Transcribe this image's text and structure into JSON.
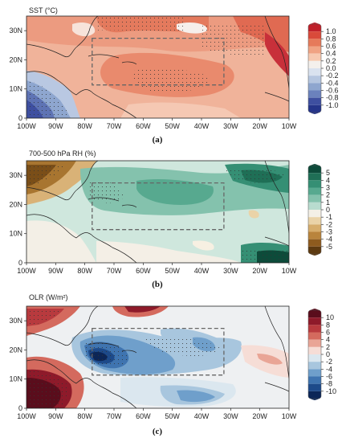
{
  "chart_data": [
    {
      "type": "heatmap",
      "title": "SST (°C)",
      "label": "(a)",
      "x_ticks": [
        "100W",
        "90W",
        "80W",
        "70W",
        "60W",
        "50W",
        "40W",
        "30W",
        "20W",
        "10W"
      ],
      "y_ticks": [
        "0",
        "10N",
        "20N",
        "30N"
      ],
      "xlim": [
        -100,
        -10
      ],
      "ylim": [
        0,
        35
      ],
      "box": {
        "lon": [
          -78,
          -32
        ],
        "lat": [
          12,
          28
        ]
      },
      "colorbar": {
        "values": [
          "1.0",
          "0.8",
          "0.6",
          "0.4",
          "0.2",
          "0.0",
          "-0.2",
          "-0.4",
          "-0.6",
          "-0.8",
          "-1.0"
        ],
        "colors": [
          "#c0202a",
          "#d94a3a",
          "#e67a5a",
          "#f0a383",
          "#f7c9b0",
          "#f4f0ec",
          "#d9e2ef",
          "#b5c6e0",
          "#8ea6cf",
          "#6b82bd",
          "#3e4fa0",
          "#25358a"
        ]
      }
    },
    {
      "type": "heatmap",
      "title": "700-500 hPa RH (%)",
      "label": "(b)",
      "x_ticks": [
        "100W",
        "90W",
        "80W",
        "70W",
        "60W",
        "50W",
        "40W",
        "30W",
        "20W",
        "10W"
      ],
      "y_ticks": [
        "0",
        "10N",
        "20N",
        "30N"
      ],
      "xlim": [
        -100,
        -10
      ],
      "ylim": [
        0,
        35
      ],
      "box": {
        "lon": [
          -78,
          -32
        ],
        "lat": [
          12,
          28
        ]
      },
      "colorbar": {
        "values": [
          "5",
          "4",
          "3",
          "2",
          "1",
          "0",
          "-1",
          "-2",
          "-3",
          "-4",
          "-5"
        ],
        "colors": [
          "#0d4b3a",
          "#1f6f56",
          "#358f74",
          "#57a98f",
          "#84c2ad",
          "#b8dccf",
          "#f4f0e6",
          "#ead3a8",
          "#d6ad6c",
          "#b9843c",
          "#8e5b1e",
          "#5e3a10"
        ]
      }
    },
    {
      "type": "heatmap",
      "title": "OLR (W/m²)",
      "label": "(c)",
      "x_ticks": [
        "100W",
        "90W",
        "80W",
        "70W",
        "60W",
        "50W",
        "40W",
        "30W",
        "20W",
        "10W"
      ],
      "y_ticks": [
        "0",
        "10N",
        "20N",
        "30N"
      ],
      "xlim": [
        -100,
        -10
      ],
      "ylim": [
        0,
        35
      ],
      "box": {
        "lon": [
          -78,
          -32
        ],
        "lat": [
          12,
          28
        ]
      },
      "colorbar": {
        "values": [
          "10",
          "8",
          "6",
          "4",
          "2",
          "0",
          "-2",
          "-4",
          "-6",
          "-8",
          "-10"
        ],
        "colors": [
          "#5a0d1c",
          "#8e1a2a",
          "#b83a3e",
          "#d46a5e",
          "#e9a596",
          "#f6ddd6",
          "#dbe7ef",
          "#a8c6de",
          "#6f9fcb",
          "#3f74b0",
          "#1d4a8a",
          "#0c2657"
        ]
      }
    }
  ]
}
